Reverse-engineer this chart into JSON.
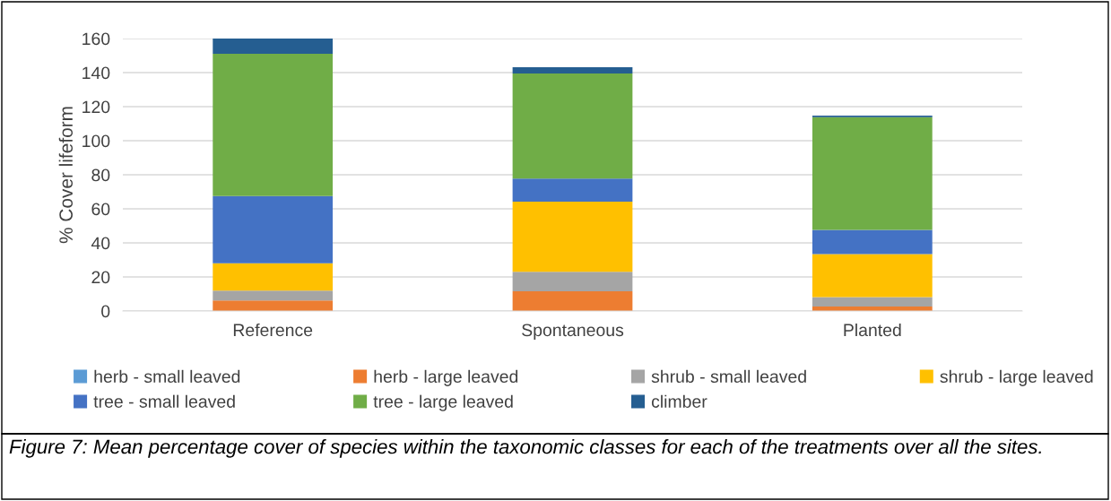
{
  "chart_data": {
    "type": "bar",
    "stacked": true,
    "ylabel": "% Cover lifeform",
    "categories": [
      "Reference",
      "Spontaneous",
      "Planted"
    ],
    "series": [
      {
        "name": "herb - small leaved",
        "color": "#5b9bd5",
        "values": [
          0,
          0,
          0
        ]
      },
      {
        "name": "herb - large leaved",
        "color": "#ed7d31",
        "values": [
          6.2,
          11.6,
          2.6
        ]
      },
      {
        "name": "shrub - small leaved",
        "color": "#a5a5a5",
        "values": [
          5.8,
          11.4,
          5.6
        ]
      },
      {
        "name": "shrub - large leaved",
        "color": "#ffc000",
        "values": [
          16,
          41.2,
          25.2
        ]
      },
      {
        "name": "tree - small leaved",
        "color": "#4472c4",
        "values": [
          39.5,
          13.5,
          14.2
        ]
      },
      {
        "name": "tree - large leaved",
        "color": "#70ad47",
        "values": [
          83.5,
          61.8,
          66.2
        ]
      },
      {
        "name": "climber",
        "color": "#255e91",
        "values": [
          9,
          3.7,
          0.9
        ]
      }
    ],
    "ylim": [
      0,
      160
    ],
    "yticks": [
      0,
      20,
      40,
      60,
      80,
      100,
      120,
      140,
      160
    ],
    "grid": "y",
    "legend": "bottom",
    "annotations": [
      "Figure 7: Mean percentage cover of species within the taxonomic classes for each of the treatments over all the sites."
    ]
  }
}
